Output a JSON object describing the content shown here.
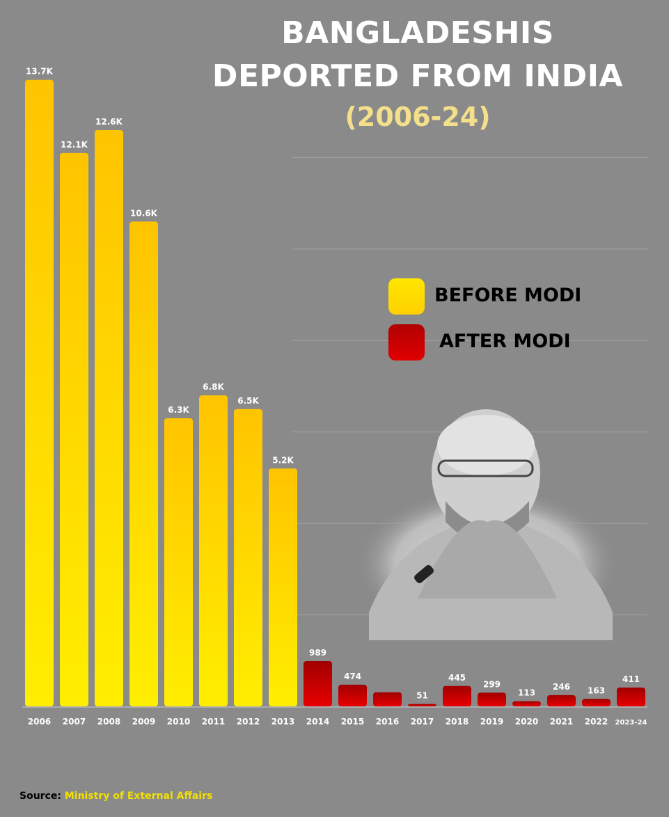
{
  "title_line1": "BANGLADESHIS",
  "title_line2": "DEPORTED FROM INDIA",
  "subtitle": "(2006-24)",
  "legend": {
    "before": "BEFORE MODI",
    "after": "AFTER MODI"
  },
  "source_label": "Source:",
  "source_value": "Ministry of External Affairs",
  "colors": {
    "before": "#ffd800",
    "after": "#d40000",
    "background": "#8a8a8a"
  },
  "chart_data": {
    "type": "bar",
    "categories": [
      "2006",
      "2007",
      "2008",
      "2009",
      "2010",
      "2011",
      "2012",
      "2013",
      "2014",
      "2015",
      "2016",
      "2017",
      "2018",
      "2019",
      "2020",
      "2021",
      "2022",
      "2023-24"
    ],
    "values": [
      13700,
      12100,
      12600,
      10600,
      6300,
      6800,
      6500,
      5200,
      989,
      474,
      308,
      51,
      445,
      299,
      113,
      246,
      163,
      411
    ],
    "labels": [
      "13.7K",
      "12.1K",
      "12.6K",
      "10.6K",
      "6.3K",
      "6.8K",
      "6.5K",
      "5.2K",
      "989",
      "474",
      "",
      "51",
      "445",
      "299",
      "113",
      "246",
      "163",
      "411"
    ],
    "groups": [
      "BEFORE MODI",
      "BEFORE MODI",
      "BEFORE MODI",
      "BEFORE MODI",
      "BEFORE MODI",
      "BEFORE MODI",
      "BEFORE MODI",
      "BEFORE MODI",
      "AFTER MODI",
      "AFTER MODI",
      "AFTER MODI",
      "AFTER MODI",
      "AFTER MODI",
      "AFTER MODI",
      "AFTER MODI",
      "AFTER MODI",
      "AFTER MODI",
      "AFTER MODI"
    ],
    "title": "BANGLADESHIS DEPORTED FROM INDIA",
    "subtitle": "(2006-24)",
    "ylim": [
      0,
      14000
    ],
    "grid": true,
    "legend_position": "right"
  }
}
